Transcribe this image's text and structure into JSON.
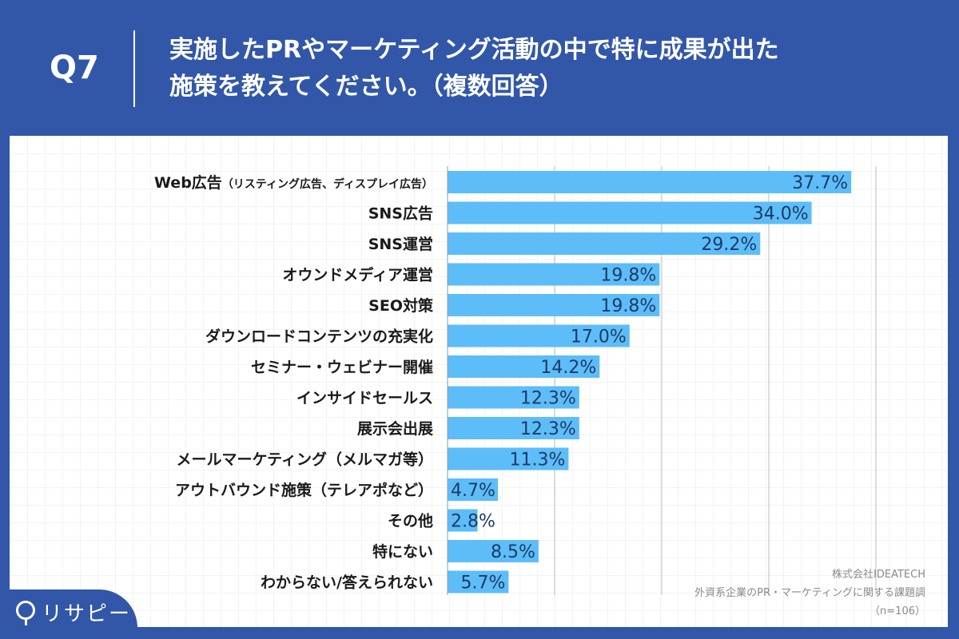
{
  "header": {
    "question": "Q7",
    "title_line1": "実施したPRやマーケティング活動の中で特に成果が出た",
    "title_line2": "施策を教えてください。（複数回答）"
  },
  "brand": {
    "logo": "リサピー"
  },
  "source": {
    "company": "株式会社IDEATECH",
    "survey": "外資系企業のPR・マーケティングに関する課題調",
    "n": "（n=106）"
  },
  "colors": {
    "background": "#3257a8",
    "bar": "#5cbdf9",
    "label": "#1a1a1a",
    "value": "#1d3a66"
  },
  "chart_data": {
    "type": "bar",
    "orientation": "horizontal",
    "xlim": [
      0,
      40
    ],
    "grid": true,
    "unit": "%",
    "categories": [
      "Web広告（リスティング広告、ディスプレイ広告）",
      "SNS広告",
      "SNS運営",
      "オウンドメディア運営",
      "SEO対策",
      "ダウンロードコンテンツの充実化",
      "セミナー・ウェビナー開催",
      "インサイドセールス",
      "展示会出展",
      "メールマーケティング（メルマガ等）",
      "アウトバウンド施策（テレアポなど）",
      "その他",
      "特にない",
      "わからない/答えられない"
    ],
    "values": [
      37.7,
      34.0,
      29.2,
      19.8,
      19.8,
      17.0,
      14.2,
      12.3,
      12.3,
      11.3,
      4.7,
      2.8,
      8.5,
      5.7
    ],
    "labels": [
      "37.7%",
      "34.0%",
      "29.2%",
      "19.8%",
      "19.8%",
      "17.0%",
      "14.2%",
      "12.3%",
      "12.3%",
      "11.3%",
      "4.7%",
      "2.8%",
      "8.5%",
      "5.7%"
    ]
  }
}
